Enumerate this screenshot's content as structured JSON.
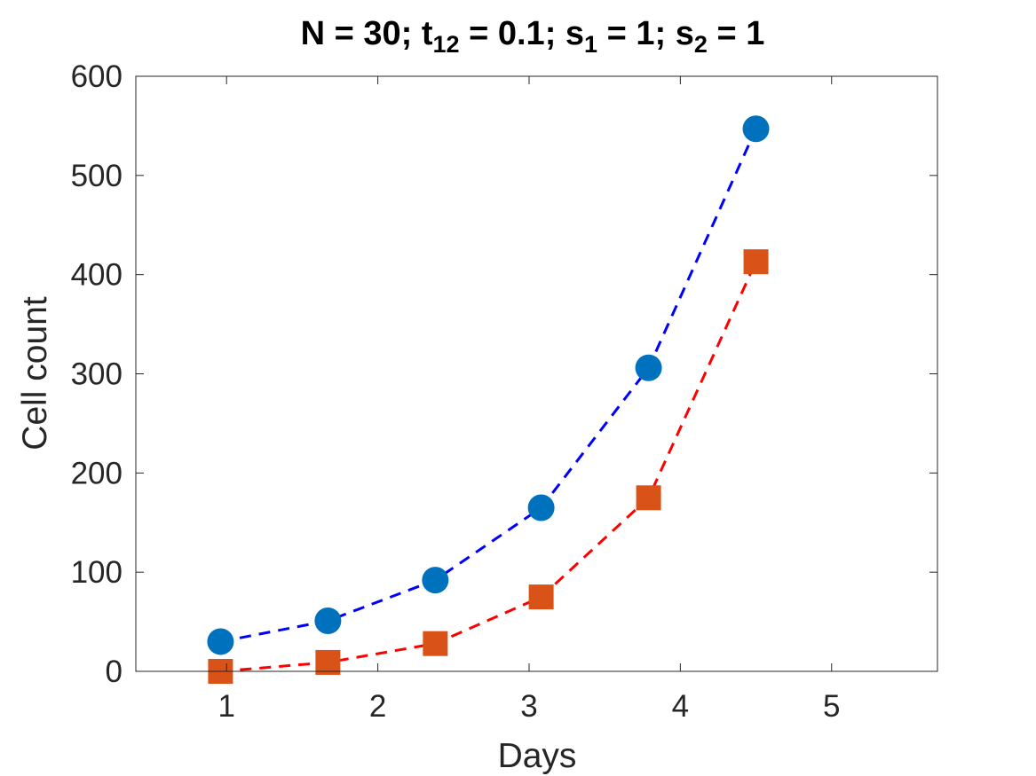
{
  "chart_data": {
    "type": "line",
    "title": {
      "parts": [
        {
          "text": "N = 30; t",
          "sub": false
        },
        {
          "text": "12",
          "sub": true
        },
        {
          "text": " = 0.1; s",
          "sub": false
        },
        {
          "text": "1",
          "sub": true
        },
        {
          "text": " = 1; s",
          "sub": false
        },
        {
          "text": "2",
          "sub": true
        },
        {
          "text": " = 1",
          "sub": false
        }
      ]
    },
    "xlabel": "Days",
    "ylabel": "Cell count",
    "xlim": [
      0.4,
      5.7
    ],
    "ylim": [
      0,
      600
    ],
    "xticks": [
      1,
      2,
      3,
      4,
      5
    ],
    "yticks": [
      0,
      100,
      200,
      300,
      400,
      500,
      600
    ],
    "grid": false,
    "box": true,
    "series": [
      {
        "marker": "circle",
        "marker_color": "#0072BD",
        "line_color": "#0000FF",
        "line_style": "dashed",
        "x": [
          0.96,
          1.67,
          2.38,
          3.08,
          3.79,
          4.5
        ],
        "y": [
          30,
          51,
          92,
          165,
          306,
          547
        ]
      },
      {
        "marker": "square",
        "marker_color": "#D95319",
        "line_color": "#FF0000",
        "line_style": "dashed",
        "x": [
          0.96,
          1.67,
          2.38,
          3.08,
          3.79,
          4.5
        ],
        "y": [
          0,
          9,
          28,
          75,
          175,
          413
        ]
      }
    ]
  }
}
